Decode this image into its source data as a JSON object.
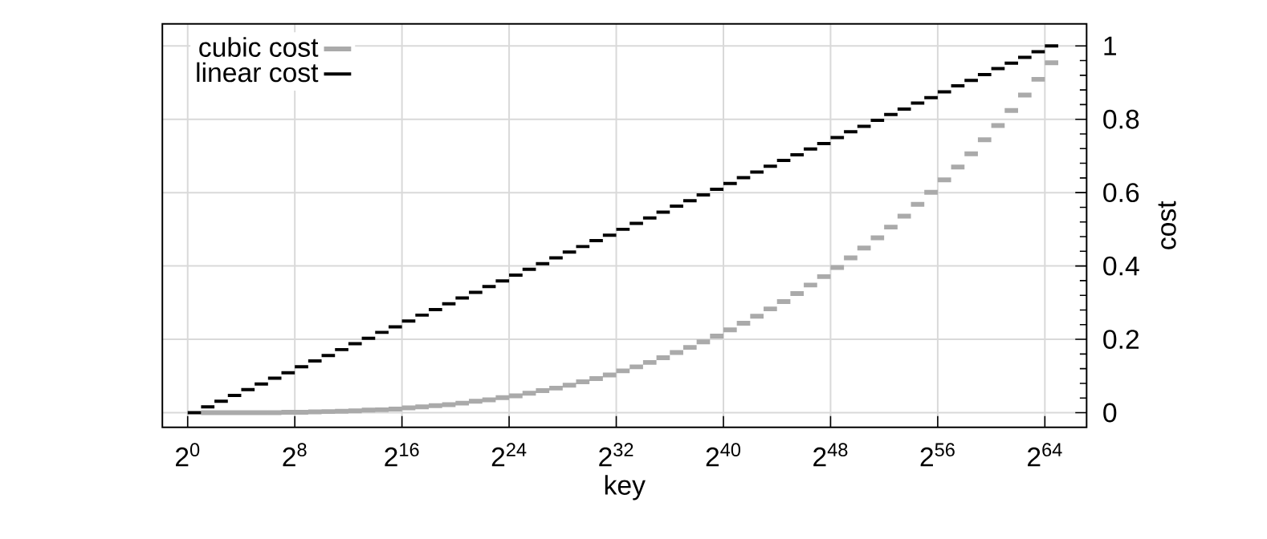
{
  "chart_data": {
    "type": "step",
    "xlabel": "key",
    "ylabel": "cost",
    "log": "x",
    "grid": true,
    "legend": "top left",
    "marker": "none",
    "xlim": [
      0.27,
      160000000000000000000
    ],
    "ylim": [
      -0.04,
      1.06
    ],
    "xticks": [
      {
        "value": 1,
        "label": "2$^{0}$"
      },
      {
        "value": 256,
        "label": "2$^{8}$"
      },
      {
        "value": 65536,
        "label": "2$^{16}$"
      },
      {
        "value": 16777216,
        "label": "2$^{24}$"
      },
      {
        "value": 4294967296,
        "label": "2$^{32}$"
      },
      {
        "value": 1099511627776,
        "label": "2$^{40}$"
      },
      {
        "value": 281474976710656,
        "label": "2$^{48}$"
      },
      {
        "value": 72057594037927936,
        "label": "2$^{56}$"
      },
      {
        "value": 18446744073709551616,
        "label": "2$^{64}$"
      }
    ],
    "yticks": [
      0,
      0.2,
      0.4,
      0.6,
      0.8,
      1
    ],
    "series": [
      {
        "name": "cubic cost",
        "color": "#aaaaaa",
        "x": [
          2,
          4,
          8,
          16,
          32,
          64,
          128,
          256,
          512,
          1024,
          2048,
          4096,
          8192,
          16384,
          32768,
          65536,
          131072,
          262144,
          524288,
          1048576,
          2097152,
          4194304,
          8388608,
          16777216,
          33554432,
          67108864,
          134217728,
          268435456,
          536870912,
          1073741824,
          2147483648,
          4294967296,
          8589934592,
          17179869184,
          34359738368,
          68719476736,
          137438953472,
          274877906944,
          549755813888,
          1099511627776,
          2199023255552,
          4398046511104,
          8796093022208,
          17592186044416,
          35184372088832,
          70368744177664,
          140737488355328,
          281474976710656,
          562949953421312,
          1125899906842624,
          2251799813685248,
          4503599627370496,
          9007199254740992,
          18014398509481984,
          36028797018963968,
          72057594037927936,
          144115188075855872,
          288230376151711744,
          576460752303423488,
          1152921504606846976,
          2305843009213693952,
          4611686018427387904,
          9223372036854775808,
          18446744073709551616,
          36893488147419103232
        ],
        "values": [
          0,
          0,
          0,
          0,
          0,
          0,
          0.001,
          0.001,
          0.002,
          0.003,
          0.004,
          0.005,
          0.007,
          0.008,
          0.01,
          0.013,
          0.016,
          0.019,
          0.022,
          0.026,
          0.031,
          0.035,
          0.041,
          0.046,
          0.053,
          0.06,
          0.067,
          0.075,
          0.084,
          0.093,
          0.103,
          0.114,
          0.125,
          0.137,
          0.15,
          0.164,
          0.178,
          0.193,
          0.209,
          0.226,
          0.244,
          0.263,
          0.283,
          0.303,
          0.325,
          0.348,
          0.371,
          0.396,
          0.422,
          0.449,
          0.477,
          0.506,
          0.536,
          0.568,
          0.601,
          0.635,
          0.67,
          0.706,
          0.744,
          0.783,
          0.824,
          0.866,
          0.909,
          0.954,
          0.954
        ]
      },
      {
        "name": "linear cost",
        "color": "#000000",
        "x": [
          1,
          2,
          4,
          8,
          16,
          32,
          64,
          128,
          256,
          512,
          1024,
          2048,
          4096,
          8192,
          16384,
          32768,
          65536,
          131072,
          262144,
          524288,
          1048576,
          2097152,
          4194304,
          8388608,
          16777216,
          33554432,
          67108864,
          134217728,
          268435456,
          536870912,
          1073741824,
          2147483648,
          4294967296,
          8589934592,
          17179869184,
          34359738368,
          68719476736,
          137438953472,
          274877906944,
          549755813888,
          1099511627776,
          2199023255552,
          4398046511104,
          8796093022208,
          17592186044416,
          35184372088832,
          70368744177664,
          140737488355328,
          281474976710656,
          562949953421312,
          1125899906842624,
          2251799813685248,
          4503599627370496,
          9007199254740992,
          18014398509481984,
          36028797018963968,
          72057594037927936,
          144115188075855872,
          288230376151711744,
          576460752303423488,
          1152921504606846976,
          2305843009213693952,
          4611686018427387904,
          9223372036854775808,
          18446744073709551616,
          36893488147419103232
        ],
        "values": [
          0,
          0.016,
          0.031,
          0.047,
          0.063,
          0.078,
          0.094,
          0.109,
          0.125,
          0.141,
          0.156,
          0.172,
          0.188,
          0.203,
          0.219,
          0.234,
          0.25,
          0.266,
          0.281,
          0.297,
          0.313,
          0.328,
          0.344,
          0.359,
          0.375,
          0.391,
          0.406,
          0.422,
          0.438,
          0.453,
          0.469,
          0.484,
          0.5,
          0.516,
          0.531,
          0.547,
          0.563,
          0.578,
          0.594,
          0.609,
          0.625,
          0.641,
          0.656,
          0.672,
          0.688,
          0.703,
          0.719,
          0.734,
          0.75,
          0.766,
          0.781,
          0.797,
          0.813,
          0.828,
          0.844,
          0.859,
          0.875,
          0.891,
          0.906,
          0.922,
          0.938,
          0.953,
          0.969,
          0.984,
          1,
          1
        ]
      }
    ]
  }
}
